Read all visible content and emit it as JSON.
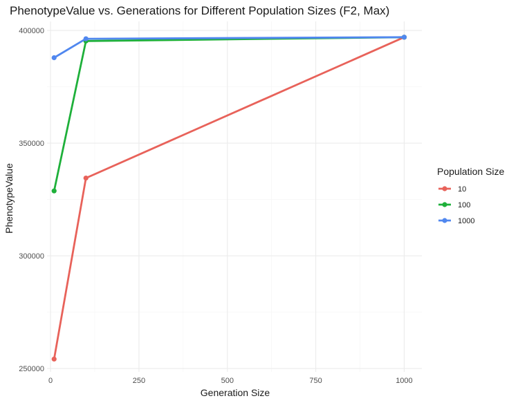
{
  "chart_data": {
    "type": "line",
    "title": "PhenotypeValue vs. Generations for Different Population Sizes (F2, Max)",
    "xlabel": "Generation Size",
    "ylabel": "PhenotypeValue",
    "xlim": [
      -10,
      1050
    ],
    "ylim": [
      248500,
      404000
    ],
    "x_ticks": [
      0,
      250,
      500,
      750,
      1000
    ],
    "x_tick_labels": [
      "0",
      "250",
      "500",
      "750",
      "1000"
    ],
    "y_ticks": [
      250000,
      300000,
      350000,
      400000
    ],
    "y_tick_labels": [
      "250000",
      "300000",
      "350000",
      "400000"
    ],
    "grid": true,
    "legend": {
      "title": "Population Size",
      "position": "right"
    },
    "series": [
      {
        "name": "10",
        "color": "#e8625a",
        "x": [
          10,
          100,
          1000
        ],
        "y": [
          254200,
          334500,
          397000
        ]
      },
      {
        "name": "100",
        "color": "#1eb03a",
        "x": [
          10,
          100,
          1000
        ],
        "y": [
          328800,
          395300,
          397000
        ]
      },
      {
        "name": "1000",
        "color": "#5087ef",
        "x": [
          10,
          100,
          1000
        ],
        "y": [
          387900,
          396300,
          397000
        ]
      }
    ]
  }
}
